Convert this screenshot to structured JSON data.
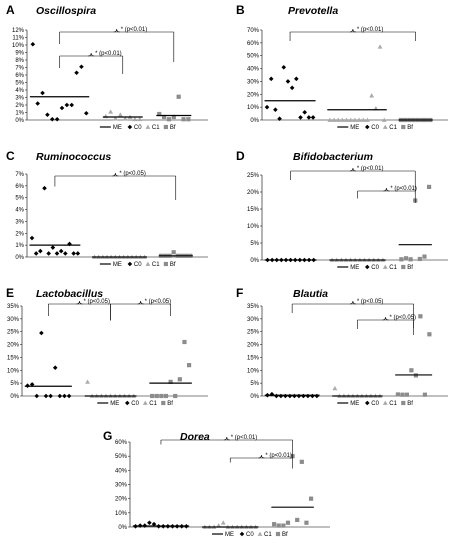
{
  "legend": {
    "me": "ME",
    "c0": "C0",
    "c1": "C1",
    "bf": "Bf"
  },
  "colors": {
    "c0": "#000000",
    "c1": "#aaaaaa",
    "bf": "#8c8c8c",
    "line": "#000000"
  },
  "chart_data": [
    {
      "letter": "A",
      "title": "Oscillospira",
      "type": "scatter",
      "yticks": [
        "0%",
        "1%",
        "2%",
        "3%",
        "4%",
        "5%",
        "6%",
        "7%",
        "8%",
        "9%",
        "10%",
        "11%",
        "12%"
      ],
      "ylim": [
        0,
        12
      ],
      "groups": [
        {
          "name": "C0",
          "values": [
            10.1,
            2.2,
            3.6,
            0.7,
            0.1,
            0.1,
            1.6,
            2.0,
            2.0,
            6.3,
            7.1,
            0.9
          ],
          "median": 3.1
        },
        {
          "name": "C1",
          "values": [
            0.5,
            1.1,
            0.2,
            0.7,
            0.2,
            0.4,
            0.1,
            0.1
          ],
          "median": 0.4
        },
        {
          "name": "Bf",
          "values": [
            0.8,
            0.4,
            0.1,
            0.4,
            3.1,
            0.1,
            0.1
          ],
          "median": 0.6
        }
      ],
      "brackets": [
        {
          "label": "* (p<0.01)",
          "from": "C0",
          "to": "Bf"
        },
        {
          "label": "* (p<0.01)",
          "from": "C0",
          "to": "C1"
        }
      ]
    },
    {
      "letter": "B",
      "title": "Prevotella",
      "type": "scatter",
      "yticks": [
        "0%",
        "10%",
        "20%",
        "30%",
        "40%",
        "50%",
        "60%",
        "70%"
      ],
      "ylim": [
        0,
        70
      ],
      "groups": [
        {
          "name": "C0",
          "values": [
            10,
            32,
            8,
            1,
            41,
            30,
            25,
            32,
            2,
            6,
            2,
            2
          ],
          "median": 15
        },
        {
          "name": "C1",
          "values": [
            0,
            0,
            0,
            0,
            0,
            0,
            0,
            0,
            0,
            0,
            19,
            9,
            57,
            0
          ],
          "median": 8
        },
        {
          "name": "Bf",
          "values": [
            0,
            0,
            0,
            0,
            0,
            0,
            0,
            0
          ],
          "median": 0
        }
      ],
      "brackets": [
        {
          "label": "* (p<0.01)",
          "from": "C0",
          "to": "Bf"
        }
      ]
    },
    {
      "letter": "C",
      "title": "Ruminococcus",
      "type": "scatter",
      "yticks": [
        "0%",
        "1%",
        "2%",
        "3%",
        "4%",
        "5%",
        "6%",
        "7%"
      ],
      "ylim": [
        0,
        7
      ],
      "groups": [
        {
          "name": "C0",
          "values": [
            1.6,
            0.3,
            0.5,
            5.8,
            0.3,
            0.8,
            0.3,
            0.5,
            0.3,
            1.1,
            0.3,
            0.3
          ],
          "median": 1.0
        },
        {
          "name": "C1",
          "values": [
            0,
            0,
            0,
            0,
            0,
            0,
            0,
            0,
            0,
            0,
            0,
            0,
            0
          ],
          "median": 0
        },
        {
          "name": "Bf",
          "values": [
            0.1,
            0.1,
            0.1,
            0.4,
            0.1,
            0.1,
            0.1,
            0.1
          ],
          "median": 0.1
        }
      ],
      "brackets": [
        {
          "label": "* (p<0.05)",
          "from": "C0",
          "to": "Bf"
        }
      ]
    },
    {
      "letter": "D",
      "title": "Bifidobacterium",
      "type": "scatter",
      "yticks": [
        "0%",
        "5%",
        "10%",
        "15%",
        "20%",
        "25%"
      ],
      "ylim": [
        0,
        25
      ],
      "groups": [
        {
          "name": "C0",
          "values": [
            0,
            0,
            0,
            0,
            0,
            0,
            0,
            0,
            0,
            0,
            0
          ],
          "median": 0
        },
        {
          "name": "C1",
          "values": [
            0,
            0,
            0,
            0,
            0,
            0,
            0,
            0,
            0,
            0,
            0,
            0
          ],
          "median": 0
        },
        {
          "name": "Bf",
          "values": [
            0.2,
            0.5,
            0.2,
            17.5,
            0.3,
            1.0,
            21.5
          ],
          "median": 4.5
        }
      ],
      "brackets": [
        {
          "label": "* (p<0.01)",
          "from": "C0",
          "to": "Bf"
        },
        {
          "label": "* (p<0.01)",
          "from": "C1",
          "to": "Bf"
        }
      ]
    },
    {
      "letter": "E",
      "title": "Lactobacillus",
      "type": "scatter",
      "yticks": [
        "0%",
        "5%",
        "10%",
        "15%",
        "20%",
        "25%",
        "30%",
        "35%"
      ],
      "ylim": [
        0,
        35
      ],
      "groups": [
        {
          "name": "C0",
          "values": [
            4,
            4.5,
            0,
            24.5,
            0,
            0,
            11,
            0,
            0,
            0
          ],
          "median": 3.8
        },
        {
          "name": "C1",
          "values": [
            5.5,
            0,
            0,
            0,
            0,
            0,
            0,
            0,
            0,
            0,
            0
          ],
          "median": 0
        },
        {
          "name": "Bf",
          "values": [
            0,
            0,
            0,
            0,
            5.5,
            0,
            6.5,
            21,
            12
          ],
          "median": 5
        }
      ],
      "brackets": [
        {
          "label": "* (p<0.05)",
          "from": "C0",
          "to": "C1"
        },
        {
          "label": "* (p<0.05)",
          "from": "C1",
          "to": "Bf"
        }
      ]
    },
    {
      "letter": "F",
      "title": "Blautia",
      "type": "scatter",
      "yticks": [
        "0%",
        "5%",
        "10%",
        "15%",
        "20%",
        "25%",
        "30%",
        "35%"
      ],
      "ylim": [
        0,
        35
      ],
      "groups": [
        {
          "name": "C0",
          "values": [
            0.3,
            0.7,
            0,
            0,
            0,
            0,
            0,
            0,
            0,
            0,
            0,
            0
          ],
          "median": 0.3
        },
        {
          "name": "C1",
          "values": [
            3,
            0,
            0,
            0,
            0,
            0,
            0,
            0,
            0,
            0,
            0
          ],
          "median": 0
        },
        {
          "name": "Bf",
          "values": [
            0.6,
            0.5,
            0.5,
            10,
            8,
            31,
            0.5,
            24
          ],
          "median": 8.2
        }
      ],
      "brackets": [
        {
          "label": "* (p<0.05)",
          "from": "C0",
          "to": "Bf"
        },
        {
          "label": "* (p<0.05)",
          "from": "C1",
          "to": "Bf"
        }
      ]
    },
    {
      "letter": "G",
      "title": "Dorea",
      "type": "scatter",
      "yticks": [
        "0%",
        "10%",
        "20%",
        "30%",
        "40%",
        "50%",
        "60%"
      ],
      "ylim": [
        0,
        60
      ],
      "groups": [
        {
          "name": "C0",
          "values": [
            0.5,
            1,
            1,
            3,
            2,
            0.5,
            0.5,
            0.5,
            0.5,
            0.5,
            0.5,
            0.5
          ],
          "median": 0.7
        },
        {
          "name": "C1",
          "values": [
            0,
            0,
            0,
            1,
            3,
            0,
            0,
            0,
            0,
            0,
            0,
            0
          ],
          "median": 0
        },
        {
          "name": "Bf",
          "values": [
            2,
            1,
            1,
            3,
            50,
            5,
            46,
            3,
            20
          ],
          "median": 14
        }
      ],
      "brackets": [
        {
          "label": "* (p<0.01)",
          "from": "C0",
          "to": "Bf"
        },
        {
          "label": "* (p<0.01)",
          "from": "C1",
          "to": "Bf"
        }
      ]
    }
  ]
}
